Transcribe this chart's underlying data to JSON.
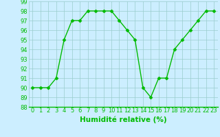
{
  "x": [
    0,
    1,
    2,
    3,
    4,
    5,
    6,
    7,
    8,
    9,
    10,
    11,
    12,
    13,
    14,
    15,
    16,
    17,
    18,
    19,
    20,
    21,
    22,
    23
  ],
  "y": [
    90,
    90,
    90,
    91,
    95,
    97,
    97,
    98,
    98,
    98,
    98,
    97,
    96,
    95,
    90,
    89,
    91,
    91,
    94,
    95,
    96,
    97,
    98,
    98
  ],
  "xlabel": "Humidité relative (%)",
  "ylim": [
    88,
    99
  ],
  "xlim": [
    -0.5,
    23.5
  ],
  "yticks": [
    88,
    89,
    90,
    91,
    92,
    93,
    94,
    95,
    96,
    97,
    98,
    99
  ],
  "xticks": [
    0,
    1,
    2,
    3,
    4,
    5,
    6,
    7,
    8,
    9,
    10,
    11,
    12,
    13,
    14,
    15,
    16,
    17,
    18,
    19,
    20,
    21,
    22,
    23
  ],
  "xtick_labels": [
    "0",
    "1",
    "2",
    "3",
    "4",
    "5",
    "6",
    "7",
    "8",
    "9",
    "10",
    "11",
    "12",
    "13",
    "14",
    "15",
    "16",
    "17",
    "18",
    "19",
    "20",
    "21",
    "22",
    "23"
  ],
  "line_color": "#00bb00",
  "marker": "D",
  "markersize": 2.5,
  "linewidth": 1.0,
  "bg_color": "#cceeff",
  "grid_color": "#99cccc",
  "xlabel_color": "#00bb00",
  "xlabel_fontsize": 7.5,
  "tick_fontsize": 6,
  "tick_color": "#00bb00"
}
